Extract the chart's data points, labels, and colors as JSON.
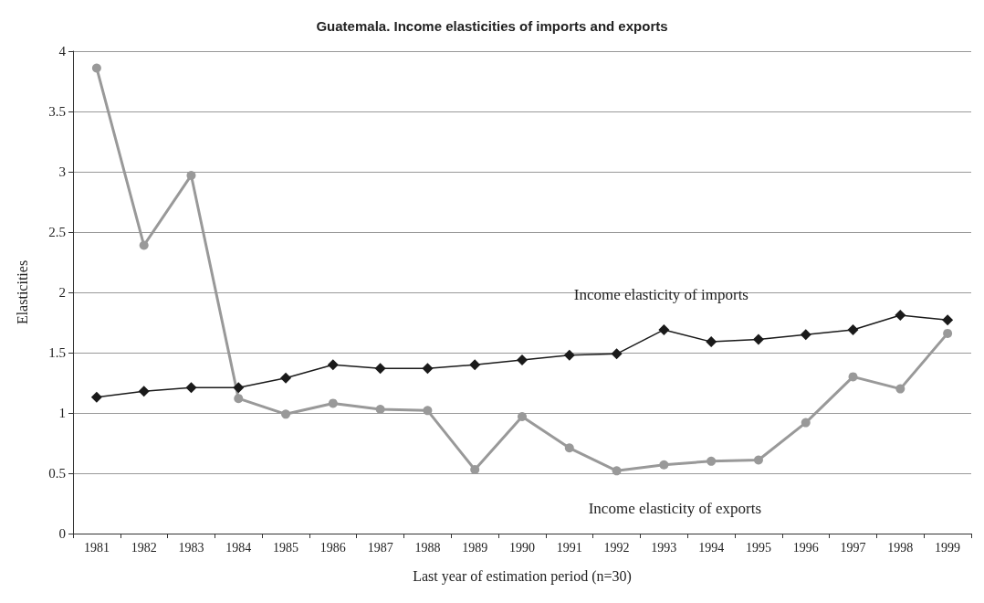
{
  "chart_data": {
    "type": "line",
    "title": "Guatemala. Income elasticities of imports and exports",
    "xlabel": "Last year of estimation period (n=30)",
    "ylabel": "Elasticities",
    "categories": [
      "1981",
      "1982",
      "1983",
      "1984",
      "1985",
      "1986",
      "1987",
      "1988",
      "1989",
      "1990",
      "1991",
      "1992",
      "1993",
      "1994",
      "1995",
      "1996",
      "1997",
      "1998",
      "1999"
    ],
    "series": [
      {
        "name": "Income elasticity of imports",
        "color": "#1a1a1a",
        "marker": "diamond",
        "values": [
          1.13,
          1.18,
          1.21,
          1.21,
          1.29,
          1.4,
          1.37,
          1.37,
          1.4,
          1.44,
          1.48,
          1.49,
          1.69,
          1.59,
          1.61,
          1.65,
          1.69,
          1.81,
          1.77
        ]
      },
      {
        "name": "Income elasticity of exports",
        "color": "#999999",
        "marker": "circle",
        "values": [
          3.86,
          2.39,
          2.97,
          1.12,
          0.99,
          1.08,
          1.03,
          1.02,
          0.53,
          0.97,
          0.71,
          0.52,
          0.57,
          0.6,
          0.61,
          0.92,
          1.3,
          1.2,
          1.66
        ]
      }
    ],
    "ylim": [
      0,
      4
    ],
    "yticks": [
      0,
      0.5,
      1,
      1.5,
      2,
      2.5,
      3,
      3.5,
      4
    ],
    "grid": "y",
    "line_style": "solid"
  }
}
